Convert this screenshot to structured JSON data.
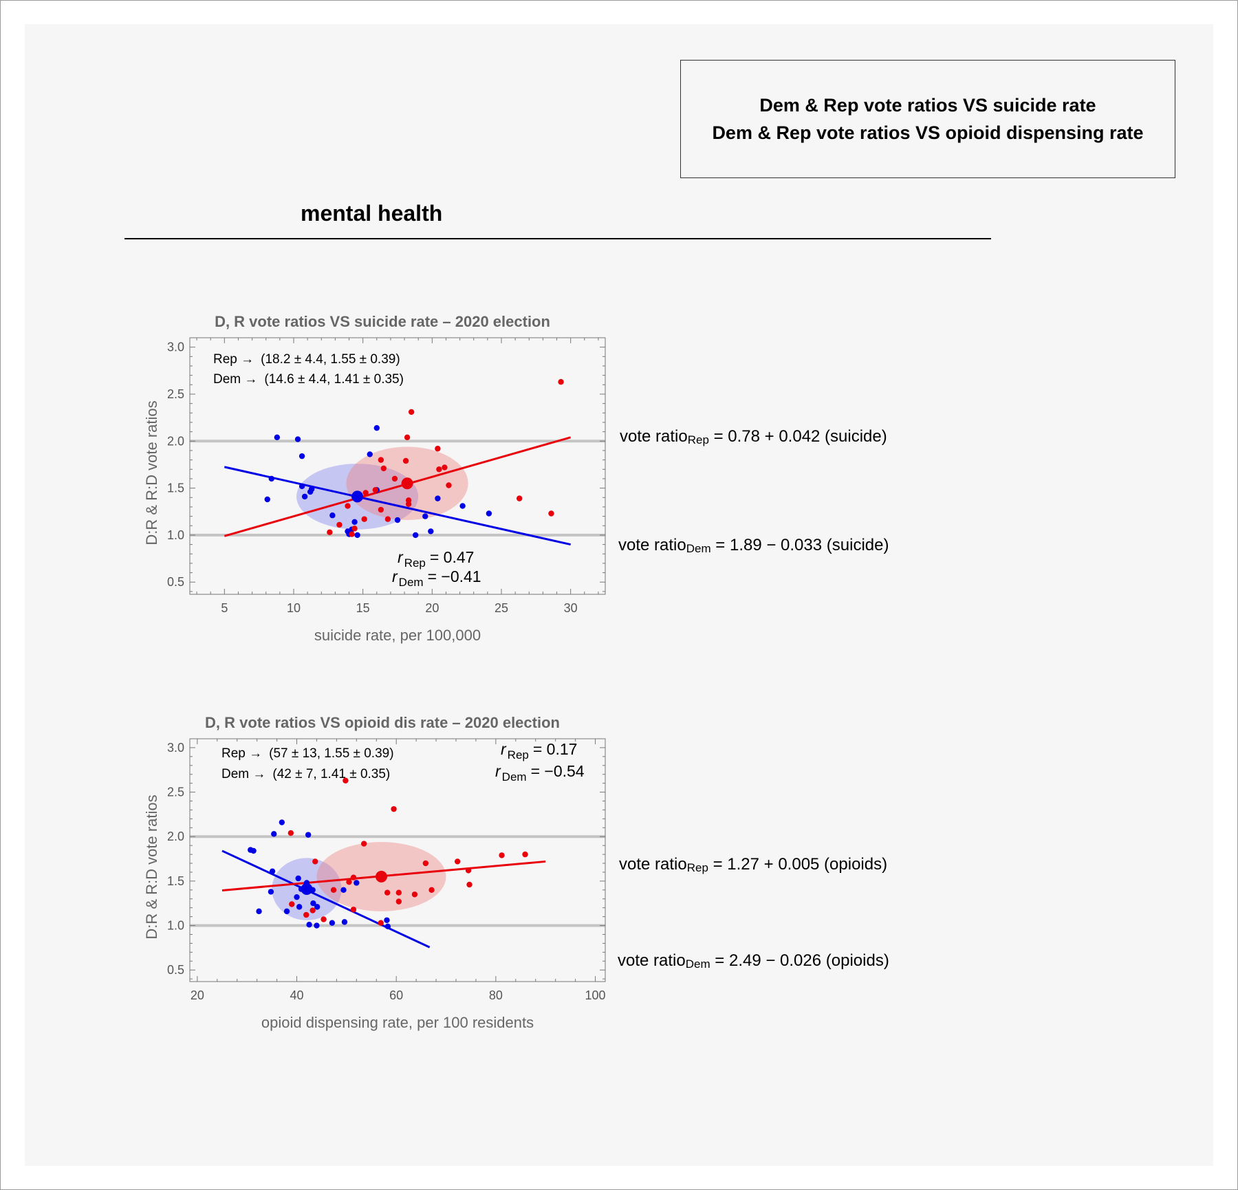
{
  "header": {
    "line1": "Dem & Rep vote ratios VS suicide rate",
    "line2": "Dem & Rep vote ratios VS opioid dispensing rate"
  },
  "section": {
    "title": "mental health"
  },
  "colors": {
    "rep": "#e8000b",
    "dem": "#0000e6",
    "rep_ellipse": "rgba(240,120,120,0.38)",
    "dem_ellipse": "rgba(120,120,240,0.38)"
  },
  "chart_data": [
    {
      "type": "scatter",
      "title": "D, R vote ratios  VS  suicide rate –  2020 election",
      "xlabel": "suicide rate, per 100,000",
      "ylabel": "D:R & R:D vote ratios",
      "xlim": [
        2.5,
        32.5
      ],
      "ylim": [
        0.37,
        3.1
      ],
      "xticks": [
        5,
        10,
        15,
        20,
        25,
        30
      ],
      "yticks": [
        0.5,
        1.0,
        1.5,
        2.0,
        2.5,
        3.0
      ],
      "xtick_labels": [
        "5",
        "10",
        "15",
        "20",
        "25",
        "30"
      ],
      "ytick_labels": [
        "0.5",
        "1.0",
        "1.5",
        "2.0",
        "2.5",
        "3.0"
      ],
      "reference_lines": [
        1.0,
        2.0
      ],
      "summary": {
        "rep_label": "Rep →",
        "rep_text": "(18.2 ± 4.4, 1.55 ± 0.39)",
        "dem_label": "Dem →",
        "dem_text": "(14.6 ± 4.4, 1.41 ± 0.35)"
      },
      "correlation": {
        "rep_label": "r",
        "rep_sub": "Rep",
        "rep_value": "=  0.47",
        "dem_label": "r",
        "dem_sub": "Dem",
        "dem_value": "= −0.41"
      },
      "equations": {
        "rep_prefix": "vote ratio",
        "rep_sub": "Rep",
        "rep_rest": "= 0.78 + 0.042 (suicide)",
        "dem_prefix": "vote ratio",
        "dem_sub": "Dem",
        "dem_rest": "= 1.89 − 0.033 (suicide)"
      },
      "series": [
        {
          "name": "Rep",
          "mean": [
            18.2,
            1.55
          ],
          "sd": [
            4.4,
            0.39
          ],
          "fit": {
            "intercept": 0.78,
            "slope": 0.042,
            "x_range": [
              5,
              30
            ]
          },
          "points": [
            [
              29.3,
              2.63
            ],
            [
              18.5,
              2.31
            ],
            [
              18.2,
              2.04
            ],
            [
              16.3,
              1.8
            ],
            [
              18.1,
              1.79
            ],
            [
              20.4,
              1.92
            ],
            [
              20.5,
              1.7
            ],
            [
              20.9,
              1.72
            ],
            [
              16.5,
              1.71
            ],
            [
              17.3,
              1.6
            ],
            [
              21.2,
              1.53
            ],
            [
              26.3,
              1.39
            ],
            [
              28.6,
              1.23
            ],
            [
              15.2,
              1.45
            ],
            [
              15.9,
              1.48
            ],
            [
              18.3,
              1.37
            ],
            [
              18.3,
              1.33
            ],
            [
              16.3,
              1.27
            ],
            [
              13.9,
              1.31
            ],
            [
              13.3,
              1.11
            ],
            [
              15.1,
              1.17
            ],
            [
              14.4,
              1.07
            ],
            [
              16.8,
              1.17
            ],
            [
              12.6,
              1.03
            ],
            [
              14.2,
              1.01
            ]
          ]
        },
        {
          "name": "Dem",
          "mean": [
            14.6,
            1.41
          ],
          "sd": [
            4.4,
            0.35
          ],
          "fit": {
            "intercept": 1.89,
            "slope": -0.033,
            "x_range": [
              5,
              30
            ]
          },
          "points": [
            [
              8.8,
              2.04
            ],
            [
              10.3,
              2.02
            ],
            [
              10.6,
              1.84
            ],
            [
              16.0,
              2.14
            ],
            [
              15.5,
              1.86
            ],
            [
              8.4,
              1.6
            ],
            [
              10.6,
              1.52
            ],
            [
              11.3,
              1.49
            ],
            [
              11.2,
              1.46
            ],
            [
              10.8,
              1.41
            ],
            [
              8.1,
              1.38
            ],
            [
              16.0,
              1.48
            ],
            [
              20.4,
              1.39
            ],
            [
              22.2,
              1.31
            ],
            [
              24.1,
              1.23
            ],
            [
              12.8,
              1.21
            ],
            [
              14.4,
              1.14
            ],
            [
              17.5,
              1.16
            ],
            [
              19.5,
              1.2
            ],
            [
              14.2,
              1.06
            ],
            [
              14.0,
              1.01
            ],
            [
              14.6,
              1.0
            ],
            [
              18.8,
              1.0
            ],
            [
              19.9,
              1.04
            ],
            [
              13.9,
              1.04
            ]
          ]
        }
      ]
    },
    {
      "type": "scatter",
      "title": "D, R vote ratios  VS  opioid dis rate –  2020 election",
      "xlabel": "opioid dispensing rate, per 100 residents",
      "ylabel": "D:R & R:D vote ratios",
      "xlim": [
        18.5,
        102
      ],
      "ylim": [
        0.37,
        3.1
      ],
      "xticks": [
        20,
        40,
        60,
        80,
        100
      ],
      "yticks": [
        0.5,
        1.0,
        1.5,
        2.0,
        2.5,
        3.0
      ],
      "xtick_labels": [
        "20",
        "40",
        "60",
        "80",
        "100"
      ],
      "ytick_labels": [
        "0.5",
        "1.0",
        "1.5",
        "2.0",
        "2.5",
        "3.0"
      ],
      "reference_lines": [
        1.0,
        2.0
      ],
      "summary": {
        "rep_label": "Rep →",
        "rep_text": "(57 ± 13, 1.55 ± 0.39)",
        "dem_label": "Dem →",
        "dem_text": "(42 ± 7, 1.41 ± 0.35)"
      },
      "correlation": {
        "rep_label": "r",
        "rep_sub": "Rep",
        "rep_value": "= 0.17",
        "dem_label": "r",
        "dem_sub": "Dem",
        "dem_value": "= −0.54"
      },
      "equations": {
        "rep_prefix": "vote ratio",
        "rep_sub": "Rep",
        "rep_rest": "= 1.27 + 0.005 (opioids)",
        "dem_prefix": "vote ratio",
        "dem_sub": "Dem",
        "dem_rest": "= 2.49 − 0.026 (opioids)"
      },
      "series": [
        {
          "name": "Rep",
          "mean": [
            57,
            1.55
          ],
          "sd": [
            13,
            0.39
          ],
          "fit": {
            "intercept": 1.27,
            "slope": 0.005,
            "x_range": [
              25,
              90
            ]
          },
          "points": [
            [
              49.8,
              2.63
            ],
            [
              59.5,
              2.31
            ],
            [
              38.8,
              2.04
            ],
            [
              53.5,
              1.92
            ],
            [
              81.2,
              1.79
            ],
            [
              85.9,
              1.8
            ],
            [
              65.9,
              1.7
            ],
            [
              72.3,
              1.72
            ],
            [
              74.5,
              1.62
            ],
            [
              74.7,
              1.46
            ],
            [
              43.7,
              1.72
            ],
            [
              51.4,
              1.54
            ],
            [
              50.5,
              1.49
            ],
            [
              67.1,
              1.4
            ],
            [
              58.2,
              1.37
            ],
            [
              60.5,
              1.37
            ],
            [
              63.7,
              1.35
            ],
            [
              60.5,
              1.27
            ],
            [
              43.2,
              1.17
            ],
            [
              39.0,
              1.24
            ],
            [
              51.4,
              1.18
            ],
            [
              45.4,
              1.07
            ],
            [
              41.9,
              1.12
            ],
            [
              47.4,
              1.4
            ],
            [
              56.9,
              1.03
            ]
          ]
        },
        {
          "name": "Dem",
          "mean": [
            42,
            1.41
          ],
          "sd": [
            7,
            0.35
          ],
          "fit": {
            "intercept": 2.49,
            "slope": -0.026,
            "x_range": [
              25,
              66.7
            ]
          },
          "points": [
            [
              37.0,
              2.16
            ],
            [
              35.4,
              2.03
            ],
            [
              42.3,
              2.02
            ],
            [
              30.7,
              1.85
            ],
            [
              31.3,
              1.84
            ],
            [
              35.1,
              1.61
            ],
            [
              40.3,
              1.53
            ],
            [
              42.0,
              1.48
            ],
            [
              52.0,
              1.48
            ],
            [
              34.8,
              1.38
            ],
            [
              43.2,
              1.4
            ],
            [
              40.9,
              1.41
            ],
            [
              49.4,
              1.4
            ],
            [
              40.0,
              1.32
            ],
            [
              43.3,
              1.25
            ],
            [
              40.5,
              1.21
            ],
            [
              44.1,
              1.21
            ],
            [
              38.0,
              1.16
            ],
            [
              32.4,
              1.16
            ],
            [
              58.1,
              1.06
            ],
            [
              47.1,
              1.03
            ],
            [
              49.6,
              1.04
            ],
            [
              42.5,
              1.01
            ],
            [
              44.0,
              1.0
            ],
            [
              58.3,
              0.99
            ]
          ]
        }
      ]
    }
  ]
}
